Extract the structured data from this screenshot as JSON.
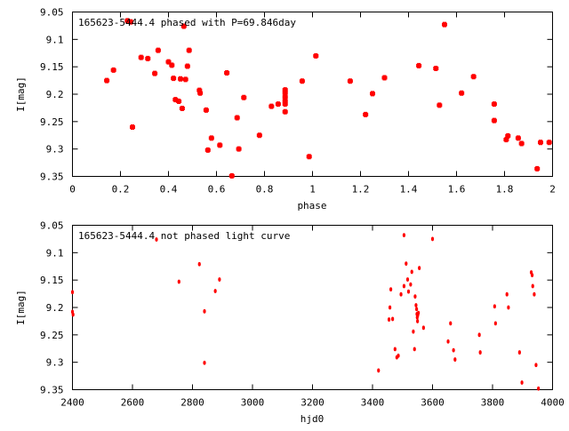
{
  "colors": {
    "series": "#ff0000",
    "axis": "#000000",
    "background": "#ffffff"
  },
  "chart_data": [
    {
      "type": "scatter",
      "title": "165623-5444.4 phased with P=69.846day",
      "xlabel": "phase",
      "ylabel": "I[mag]",
      "xlim": [
        0,
        2
      ],
      "ylim": [
        9.05,
        9.35
      ],
      "y_inverted": true,
      "x_ticks": [
        "0",
        "0.2",
        "0.4",
        "0.6",
        "0.8",
        "1",
        "1.2",
        "1.4",
        "1.6",
        "1.8",
        "2"
      ],
      "y_ticks": [
        "9.05",
        "9.1",
        "9.15",
        "9.2",
        "9.25",
        "9.3",
        "9.35"
      ],
      "grid": false,
      "marker": "star",
      "points": [
        [
          0.143,
          9.175
        ],
        [
          0.171,
          9.156
        ],
        [
          0.229,
          9.066
        ],
        [
          0.243,
          9.068
        ],
        [
          0.25,
          9.26
        ],
        [
          0.286,
          9.133
        ],
        [
          0.314,
          9.135
        ],
        [
          0.343,
          9.162
        ],
        [
          0.357,
          9.12
        ],
        [
          0.4,
          9.141
        ],
        [
          0.414,
          9.147
        ],
        [
          0.421,
          9.171
        ],
        [
          0.429,
          9.21
        ],
        [
          0.443,
          9.213
        ],
        [
          0.45,
          9.172
        ],
        [
          0.457,
          9.226
        ],
        [
          0.464,
          9.076
        ],
        [
          0.471,
          9.173
        ],
        [
          0.479,
          9.149
        ],
        [
          0.486,
          9.12
        ],
        [
          0.529,
          9.193
        ],
        [
          0.532,
          9.198
        ],
        [
          0.557,
          9.229
        ],
        [
          0.564,
          9.302
        ],
        [
          0.579,
          9.28
        ],
        [
          0.614,
          9.293
        ],
        [
          0.643,
          9.161
        ],
        [
          0.664,
          9.349
        ],
        [
          0.686,
          9.243
        ],
        [
          0.693,
          9.3
        ],
        [
          0.714,
          9.206
        ],
        [
          0.779,
          9.275
        ],
        [
          0.829,
          9.222
        ],
        [
          0.857,
          9.218
        ],
        [
          0.886,
          9.192
        ],
        [
          0.886,
          9.198
        ],
        [
          0.886,
          9.205
        ],
        [
          0.886,
          9.212
        ],
        [
          0.886,
          9.218
        ],
        [
          0.886,
          9.232
        ],
        [
          0.957,
          9.176
        ],
        [
          0.986,
          9.314
        ],
        [
          1.014,
          9.13
        ],
        [
          1.157,
          9.176
        ],
        [
          1.221,
          9.237
        ],
        [
          1.25,
          9.199
        ],
        [
          1.3,
          9.17
        ],
        [
          1.443,
          9.148
        ],
        [
          1.514,
          9.153
        ],
        [
          1.529,
          9.22
        ],
        [
          1.55,
          9.073
        ],
        [
          1.621,
          9.198
        ],
        [
          1.671,
          9.168
        ],
        [
          1.757,
          9.218
        ],
        [
          1.757,
          9.248
        ],
        [
          1.807,
          9.283
        ],
        [
          1.814,
          9.276
        ],
        [
          1.857,
          9.28
        ],
        [
          1.871,
          9.29
        ],
        [
          1.936,
          9.336
        ],
        [
          1.95,
          9.288
        ],
        [
          1.986,
          9.288
        ]
      ]
    },
    {
      "type": "scatter",
      "title": "165623-5444.4 not phased light curve",
      "xlabel": "hjd0",
      "ylabel": "I[mag]",
      "xlim": [
        2400,
        4000
      ],
      "ylim": [
        9.05,
        9.35
      ],
      "y_inverted": true,
      "x_ticks": [
        "2400",
        "2600",
        "2800",
        "3000",
        "3200",
        "3400",
        "3600",
        "3800",
        "4000"
      ],
      "y_ticks": [
        "9.05",
        "9.1",
        "9.15",
        "9.2",
        "9.25",
        "9.3",
        "9.35"
      ],
      "grid": false,
      "marker": "dot",
      "points": [
        [
          2400,
          9.172
        ],
        [
          2400,
          9.208
        ],
        [
          2402,
          9.213
        ],
        [
          2680,
          9.076
        ],
        [
          2755,
          9.153
        ],
        [
          2823,
          9.121
        ],
        [
          2840,
          9.207
        ],
        [
          2840,
          9.301
        ],
        [
          2876,
          9.17
        ],
        [
          2890,
          9.149
        ],
        [
          3420,
          9.315
        ],
        [
          3455,
          9.222
        ],
        [
          3458,
          9.2
        ],
        [
          3461,
          9.167
        ],
        [
          3467,
          9.221
        ],
        [
          3475,
          9.276
        ],
        [
          3481,
          9.291
        ],
        [
          3486,
          9.288
        ],
        [
          3495,
          9.176
        ],
        [
          3505,
          9.068
        ],
        [
          3505,
          9.161
        ],
        [
          3512,
          9.12
        ],
        [
          3517,
          9.149
        ],
        [
          3520,
          9.171
        ],
        [
          3527,
          9.158
        ],
        [
          3531,
          9.135
        ],
        [
          3536,
          9.244
        ],
        [
          3540,
          9.276
        ],
        [
          3542,
          9.18
        ],
        [
          3545,
          9.196
        ],
        [
          3547,
          9.203
        ],
        [
          3548,
          9.212
        ],
        [
          3549,
          9.218
        ],
        [
          3550,
          9.225
        ],
        [
          3551,
          9.214
        ],
        [
          3553,
          9.21
        ],
        [
          3556,
          9.128
        ],
        [
          3570,
          9.237
        ],
        [
          3600,
          9.075
        ],
        [
          3652,
          9.262
        ],
        [
          3660,
          9.229
        ],
        [
          3670,
          9.278
        ],
        [
          3675,
          9.295
        ],
        [
          3756,
          9.25
        ],
        [
          3759,
          9.282
        ],
        [
          3807,
          9.198
        ],
        [
          3810,
          9.229
        ],
        [
          3848,
          9.176
        ],
        [
          3853,
          9.2
        ],
        [
          3890,
          9.282
        ],
        [
          3898,
          9.337
        ],
        [
          3929,
          9.136
        ],
        [
          3932,
          9.141
        ],
        [
          3934,
          9.161
        ],
        [
          3939,
          9.176
        ],
        [
          3945,
          9.305
        ],
        [
          3953,
          9.348
        ]
      ]
    }
  ]
}
